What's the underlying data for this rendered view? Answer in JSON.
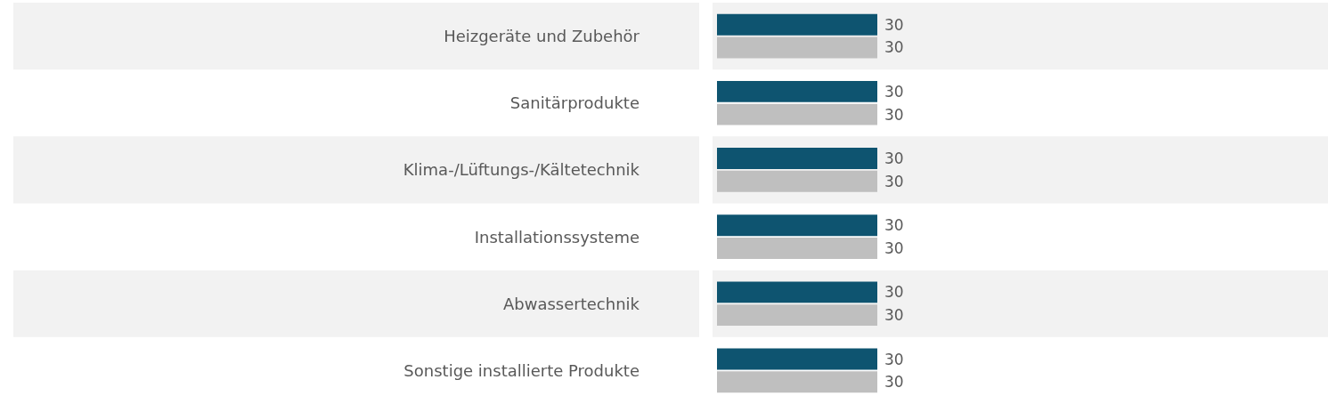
{
  "chart_data": {
    "type": "bar",
    "orientation": "horizontal",
    "categories": [
      "Heizgeräte und Zubehör",
      "Sanitärprodukte",
      "Klima-/Lüftungs-/Kältetechnik",
      "Installationssysteme",
      "Abwassertechnik",
      "Sonstige installierte Produkte"
    ],
    "series": [
      {
        "color": "#0e5470",
        "values": [
          30,
          30,
          30,
          30,
          30,
          30
        ]
      },
      {
        "color": "#bfbfbf",
        "values": [
          30,
          30,
          30,
          30,
          30,
          30
        ]
      }
    ],
    "data_labels": true,
    "bands": [
      {
        "axis": "y",
        "from": "Heizgeräte und Zubehör",
        "to": "Heizgeräte und Zubehör",
        "color": "#f2f2f2"
      },
      {
        "axis": "y",
        "from": "Klima-/Lüftungs-/Kältetechnik",
        "to": "Klima-/Lüftungs-/Kältetechnik",
        "color": "#f2f2f2"
      },
      {
        "axis": "y",
        "from": "Abwassertechnik",
        "to": "Abwassertechnik",
        "color": "#f2f2f2"
      }
    ]
  }
}
